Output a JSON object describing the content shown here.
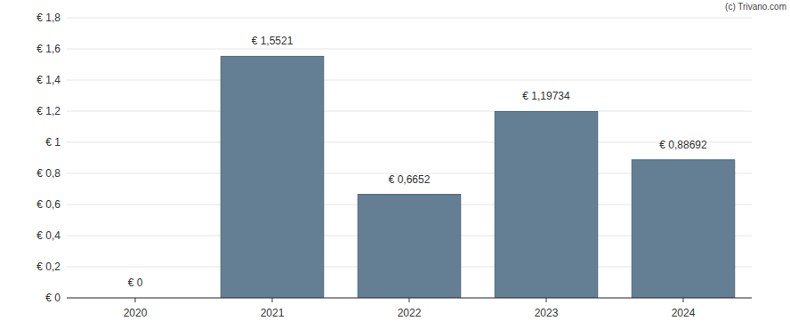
{
  "chart_data": {
    "type": "bar",
    "annotations": [
      "(c) Trivano.com"
    ],
    "categories": [
      "2020",
      "2021",
      "2022",
      "2023",
      "2024"
    ],
    "values": [
      0,
      1.5521,
      0.6652,
      1.19734,
      0.88692
    ],
    "value_labels": [
      "€ 0",
      "€ 1,5521",
      "€ 0,6652",
      "€ 1,19734",
      "€ 0,88692"
    ],
    "color": "#647f94",
    "ylim": [
      0,
      1.8
    ],
    "yticks": [
      {
        "value": 0,
        "label": "€ 0"
      },
      {
        "value": 0.2,
        "label": "€ 0,2"
      },
      {
        "value": 0.4,
        "label": "€ 0,4"
      },
      {
        "value": 0.6,
        "label": "€ 0,6"
      },
      {
        "value": 0.8,
        "label": "€ 0,8"
      },
      {
        "value": 1,
        "label": "€ 1"
      },
      {
        "value": 1.2,
        "label": "€ 1,2"
      },
      {
        "value": 1.4,
        "label": "€ 1,4"
      },
      {
        "value": 1.6,
        "label": "€ 1,6"
      },
      {
        "value": 1.8,
        "label": "€ 1,8"
      }
    ],
    "grid": true,
    "data_labels": true
  }
}
